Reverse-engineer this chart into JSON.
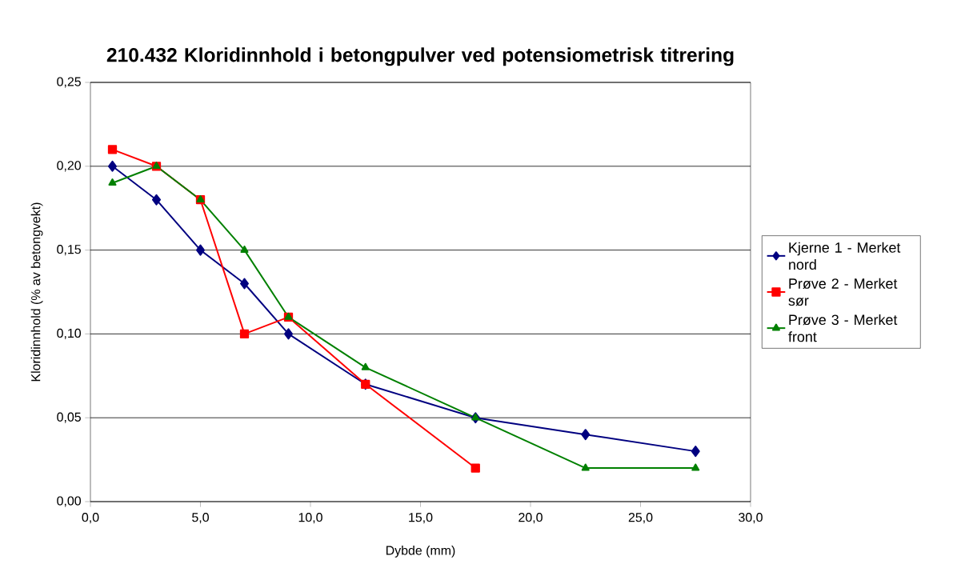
{
  "chart_data": {
    "type": "line",
    "title": "210.432 Kloridinnhold i betongpulver ved potensiometrisk titrering",
    "xlabel": "Dybde (mm)",
    "ylabel": "Kloridinnhold (% av betongvekt)",
    "xlim": [
      0,
      30
    ],
    "ylim": [
      0,
      0.25
    ],
    "xticks": [
      {
        "value": 0,
        "label": "0,0"
      },
      {
        "value": 5,
        "label": "5,0"
      },
      {
        "value": 10,
        "label": "10,0"
      },
      {
        "value": 15,
        "label": "15,0"
      },
      {
        "value": 20,
        "label": "20,0"
      },
      {
        "value": 25,
        "label": "25,0"
      },
      {
        "value": 30,
        "label": "30,0"
      }
    ],
    "yticks": [
      {
        "value": 0,
        "label": "0,00"
      },
      {
        "value": 0.05,
        "label": "0,05"
      },
      {
        "value": 0.1,
        "label": "0,10"
      },
      {
        "value": 0.15,
        "label": "0,15"
      },
      {
        "value": 0.2,
        "label": "0,20"
      },
      {
        "value": 0.25,
        "label": "0,25"
      }
    ],
    "grid": "y",
    "legend": "right",
    "line_style": "solid",
    "series": [
      {
        "name": "Kjerne 1 - Merket nord",
        "color": "#000080",
        "marker": "diamond",
        "x": [
          1,
          3,
          5,
          7,
          9,
          12.5,
          17.5,
          22.5,
          27.5
        ],
        "values": [
          0.2,
          0.18,
          0.15,
          0.13,
          0.1,
          0.07,
          0.05,
          0.04,
          0.03
        ]
      },
      {
        "name": "Prøve 2 - Merket sør",
        "color": "#ff0000",
        "marker": "square",
        "x": [
          1,
          3,
          5,
          7,
          9,
          12.5,
          17.5
        ],
        "values": [
          0.21,
          0.2,
          0.18,
          0.1,
          0.11,
          0.07,
          0.02
        ]
      },
      {
        "name": "Prøve 3 - Merket front",
        "color": "#008000",
        "marker": "triangle",
        "x": [
          1,
          3,
          5,
          7,
          9,
          12.5,
          17.5,
          22.5,
          27.5
        ],
        "values": [
          0.19,
          0.2,
          0.18,
          0.15,
          0.11,
          0.08,
          0.05,
          0.02,
          0.02
        ]
      }
    ]
  }
}
